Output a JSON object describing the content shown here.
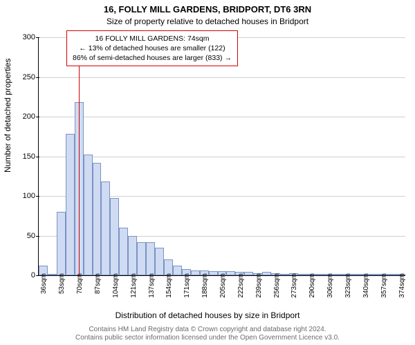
{
  "title_main": "16, FOLLY MILL GARDENS, BRIDPORT, DT6 3RN",
  "title_sub": "Size of property relative to detached houses in Bridport",
  "ylabel": "Number of detached properties",
  "xlabel": "Distribution of detached houses by size in Bridport",
  "attribution_line1": "Contains HM Land Registry data © Crown copyright and database right 2024.",
  "attribution_line2": "Contains public sector information licensed under the Open Government Licence v3.0.",
  "chart": {
    "type": "histogram",
    "background_color": "#ffffff",
    "grid_color": "#cfcfcf",
    "bar_fill": "#cfdbf2",
    "bar_border": "#7a93c4",
    "marker_color": "#d40000",
    "ylim": [
      0,
      300
    ],
    "ytick_step": 50,
    "yticks": [
      0,
      50,
      100,
      150,
      200,
      250,
      300
    ],
    "xticks": [
      "36sqm",
      "53sqm",
      "70sqm",
      "87sqm",
      "104sqm",
      "121sqm",
      "137sqm",
      "154sqm",
      "171sqm",
      "188sqm",
      "205sqm",
      "222sqm",
      "239sqm",
      "256sqm",
      "273sqm",
      "290sqm",
      "306sqm",
      "323sqm",
      "340sqm",
      "357sqm",
      "374sqm"
    ],
    "values": [
      12,
      2,
      80,
      178,
      218,
      152,
      142,
      118,
      97,
      60,
      50,
      42,
      42,
      35,
      20,
      12,
      8,
      6,
      6,
      5,
      5,
      5,
      4,
      4,
      3,
      4,
      3,
      2,
      3,
      2,
      2,
      2,
      2,
      2,
      2,
      2,
      2,
      2,
      2,
      2,
      2
    ]
  },
  "marker": {
    "property_size_sqm": 74,
    "line1": "16 FOLLY MILL GARDENS: 74sqm",
    "line2": "← 13% of detached houses are smaller (122)",
    "line3": "86% of semi-detached houses are larger (833) →"
  }
}
